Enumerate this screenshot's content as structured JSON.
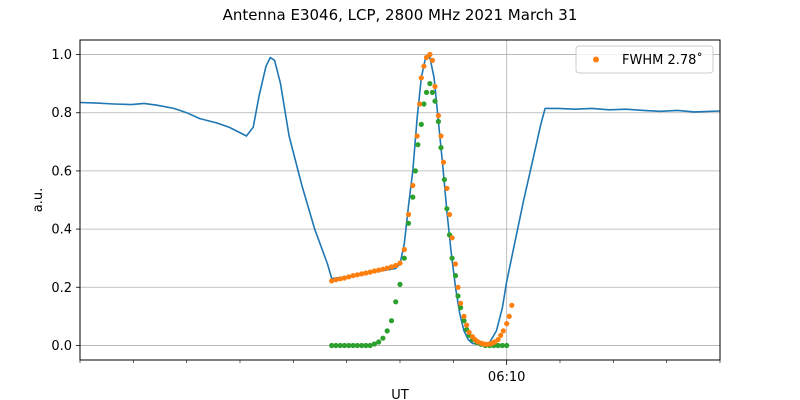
{
  "chart_data": {
    "type": "line",
    "title": "Antenna E3046, LCP, 2800 MHz 2021 March 31",
    "xlabel": "UT",
    "ylabel": "a.u.",
    "xlim": [
      0,
      75
    ],
    "ylim": [
      -0.05,
      1.05
    ],
    "grid": true,
    "legend_position": "top-right",
    "y_ticks": [
      "0.0",
      "0.2",
      "0.4",
      "0.6",
      "0.8",
      "1.0"
    ],
    "y_tick_values": [
      0,
      0.2,
      0.4,
      0.6,
      0.8,
      1.0
    ],
    "x_ticks": [
      {
        "x": 50,
        "label": "06:10"
      }
    ],
    "x_minor_ticks": [
      0,
      6.25,
      12.5,
      18.75,
      25,
      31.25,
      37.5,
      43.75,
      56.25,
      62.5,
      68.75,
      75
    ],
    "colors": {
      "line": "#1f77b4",
      "orange": "#ff7f0e",
      "green": "#2ca02c",
      "grid": "#b0b0b0"
    },
    "series": [
      {
        "kind": "line",
        "color": "#1f77b4",
        "points": [
          [
            0,
            0.835
          ],
          [
            2,
            0.833
          ],
          [
            4,
            0.83
          ],
          [
            6,
            0.828
          ],
          [
            7.5,
            0.832
          ],
          [
            9,
            0.826
          ],
          [
            11,
            0.815
          ],
          [
            12.5,
            0.8
          ],
          [
            14,
            0.78
          ],
          [
            16,
            0.765
          ],
          [
            17.5,
            0.75
          ],
          [
            18.5,
            0.735
          ],
          [
            19.5,
            0.72
          ],
          [
            20.3,
            0.75
          ],
          [
            21,
            0.86
          ],
          [
            21.8,
            0.96
          ],
          [
            22.3,
            0.99
          ],
          [
            22.8,
            0.98
          ],
          [
            23.5,
            0.9
          ],
          [
            24.5,
            0.72
          ],
          [
            26,
            0.55
          ],
          [
            27.5,
            0.4
          ],
          [
            29,
            0.28
          ],
          [
            29.5,
            0.23
          ],
          [
            31,
            0.235
          ],
          [
            33,
            0.245
          ],
          [
            35,
            0.255
          ],
          [
            37,
            0.265
          ],
          [
            37.5,
            0.28
          ],
          [
            38,
            0.35
          ],
          [
            38.5,
            0.48
          ],
          [
            39,
            0.6
          ],
          [
            39.5,
            0.78
          ],
          [
            40,
            0.92
          ],
          [
            40.5,
            0.99
          ],
          [
            41,
            0.99
          ],
          [
            41.5,
            0.92
          ],
          [
            42,
            0.77
          ],
          [
            42.5,
            0.62
          ],
          [
            43,
            0.46
          ],
          [
            43.5,
            0.32
          ],
          [
            44,
            0.2
          ],
          [
            44.5,
            0.11
          ],
          [
            45,
            0.05
          ],
          [
            45.5,
            0.02
          ],
          [
            46,
            0.007
          ],
          [
            47,
            0.003
          ],
          [
            48,
            0.01
          ],
          [
            48.8,
            0.05
          ],
          [
            49.5,
            0.13
          ],
          [
            50,
            0.22
          ],
          [
            51,
            0.36
          ],
          [
            52,
            0.5
          ],
          [
            53,
            0.63
          ],
          [
            54,
            0.76
          ],
          [
            54.5,
            0.815
          ],
          [
            56,
            0.815
          ],
          [
            58,
            0.812
          ],
          [
            60,
            0.815
          ],
          [
            62,
            0.81
          ],
          [
            64,
            0.812
          ],
          [
            66,
            0.808
          ],
          [
            68,
            0.805
          ],
          [
            70,
            0.808
          ],
          [
            72,
            0.803
          ],
          [
            75,
            0.806
          ]
        ]
      },
      {
        "kind": "scatter",
        "color": "#2ca02c",
        "points": [
          [
            29.5,
            0.0
          ],
          [
            30,
            0.0
          ],
          [
            30.5,
            0.0
          ],
          [
            31,
            0.0
          ],
          [
            31.5,
            0.0
          ],
          [
            32,
            0.0
          ],
          [
            32.5,
            0.0
          ],
          [
            33,
            0.0
          ],
          [
            33.5,
            0.0
          ],
          [
            34,
            0.0
          ],
          [
            34.5,
            0.005
          ],
          [
            35,
            0.012
          ],
          [
            35.5,
            0.025
          ],
          [
            36,
            0.05
          ],
          [
            36.5,
            0.085
          ],
          [
            37,
            0.15
          ],
          [
            37.5,
            0.21
          ],
          [
            38,
            0.3
          ],
          [
            38.5,
            0.42
          ],
          [
            39,
            0.51
          ],
          [
            39.3,
            0.6
          ],
          [
            39.6,
            0.69
          ],
          [
            40,
            0.76
          ],
          [
            40.3,
            0.83
          ],
          [
            40.6,
            0.87
          ],
          [
            41,
            0.9
          ],
          [
            41.3,
            0.87
          ],
          [
            41.6,
            0.84
          ],
          [
            42,
            0.77
          ],
          [
            42.3,
            0.68
          ],
          [
            42.7,
            0.57
          ],
          [
            43,
            0.47
          ],
          [
            43.3,
            0.38
          ],
          [
            43.6,
            0.3
          ],
          [
            44,
            0.24
          ],
          [
            44.3,
            0.17
          ],
          [
            44.6,
            0.13
          ],
          [
            45,
            0.085
          ],
          [
            45.3,
            0.055
          ],
          [
            45.6,
            0.035
          ],
          [
            46,
            0.02
          ],
          [
            46.5,
            0.01
          ],
          [
            47,
            0.004
          ],
          [
            47.5,
            0.0
          ],
          [
            48,
            0.0
          ],
          [
            48.5,
            0.0
          ],
          [
            49,
            0.0
          ],
          [
            49.5,
            0.0
          ],
          [
            50,
            0.0
          ]
        ]
      },
      {
        "kind": "scatter",
        "color": "#ff7f0e",
        "name": "FWHM 2.78$^\\circ$",
        "legend_label": "FWHM 2.78˚",
        "points": [
          [
            29.5,
            0.222
          ],
          [
            30,
            0.226
          ],
          [
            30.5,
            0.229
          ],
          [
            31,
            0.232
          ],
          [
            31.5,
            0.236
          ],
          [
            32,
            0.24
          ],
          [
            32.5,
            0.243
          ],
          [
            33,
            0.246
          ],
          [
            33.5,
            0.249
          ],
          [
            34,
            0.252
          ],
          [
            34.5,
            0.256
          ],
          [
            35,
            0.259
          ],
          [
            35.5,
            0.262
          ],
          [
            36,
            0.266
          ],
          [
            36.5,
            0.27
          ],
          [
            37,
            0.275
          ],
          [
            37.5,
            0.283
          ],
          [
            38,
            0.33
          ],
          [
            38.5,
            0.45
          ],
          [
            39,
            0.55
          ],
          [
            39.5,
            0.72
          ],
          [
            39.8,
            0.83
          ],
          [
            40,
            0.92
          ],
          [
            40.3,
            0.96
          ],
          [
            40.6,
            0.99
          ],
          [
            41,
            1.0
          ],
          [
            41.3,
            0.98
          ],
          [
            41.6,
            0.89
          ],
          [
            42,
            0.79
          ],
          [
            42.3,
            0.72
          ],
          [
            42.6,
            0.63
          ],
          [
            43,
            0.54
          ],
          [
            43.3,
            0.45
          ],
          [
            43.6,
            0.37
          ],
          [
            44,
            0.28
          ],
          [
            44.3,
            0.2
          ],
          [
            44.6,
            0.145
          ],
          [
            45,
            0.1
          ],
          [
            45.3,
            0.07
          ],
          [
            45.6,
            0.045
          ],
          [
            46,
            0.03
          ],
          [
            46.3,
            0.02
          ],
          [
            46.6,
            0.013
          ],
          [
            47,
            0.008
          ],
          [
            47.3,
            0.005
          ],
          [
            47.6,
            0.004
          ],
          [
            48,
            0.005
          ],
          [
            48.3,
            0.008
          ],
          [
            48.6,
            0.012
          ],
          [
            49,
            0.02
          ],
          [
            49.3,
            0.035
          ],
          [
            49.6,
            0.05
          ],
          [
            50,
            0.075
          ],
          [
            50.3,
            0.1
          ],
          [
            50.6,
            0.138
          ]
        ]
      }
    ]
  }
}
